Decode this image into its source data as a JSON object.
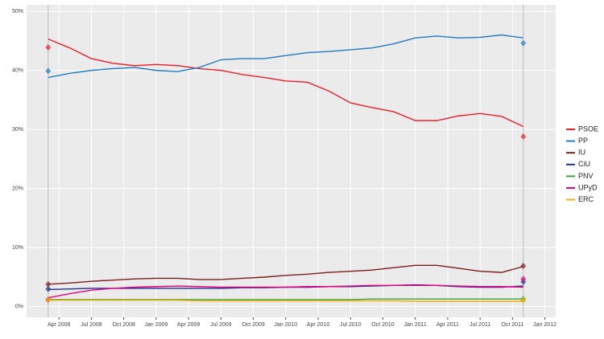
{
  "chart_data": {
    "type": "line",
    "x": [
      "2008-03",
      "2008-05",
      "2008-07",
      "2008-09",
      "2008-11",
      "2009-01",
      "2009-03",
      "2009-05",
      "2009-07",
      "2009-09",
      "2009-11",
      "2010-01",
      "2010-03",
      "2010-05",
      "2010-07",
      "2010-09",
      "2010-11",
      "2011-01",
      "2011-03",
      "2011-05",
      "2011-07",
      "2011-09",
      "2011-11"
    ],
    "election_x": [
      "2008-03",
      "2011-11"
    ],
    "series": [
      {
        "name": "PSOE",
        "color": "#e8202a",
        "values": [
          45.3,
          43.8,
          42,
          41.2,
          40.8,
          41,
          40.8,
          40.3,
          40,
          39.3,
          38.8,
          38.2,
          38,
          36.5,
          34.5,
          33.7,
          33,
          31.5,
          31.5,
          32.3,
          32.7,
          32.2,
          30.5
        ],
        "results": [
          43.9,
          28.8
        ]
      },
      {
        "name": "PP",
        "color": "#1f7bc1",
        "values": [
          38.8,
          39.5,
          40,
          40.3,
          40.5,
          40,
          39.8,
          40.5,
          41.8,
          42,
          42,
          42.5,
          43,
          43.2,
          43.5,
          43.8,
          44.5,
          45.5,
          45.8,
          45.5,
          45.6,
          46,
          45.5
        ],
        "results": [
          39.9,
          44.6
        ]
      },
      {
        "name": "IU",
        "color": "#7a1e1e",
        "values": [
          3.8,
          4,
          4.3,
          4.5,
          4.7,
          4.8,
          4.8,
          4.6,
          4.6,
          4.8,
          5,
          5.3,
          5.5,
          5.8,
          6,
          6.2,
          6.6,
          7,
          7,
          6.5,
          6,
          5.8,
          6.8
        ],
        "results": [
          3.8,
          6.9
        ]
      },
      {
        "name": "CiU",
        "color": "#1f2f8a",
        "values": [
          2.9,
          3,
          3.1,
          3.1,
          3.1,
          3.1,
          3.1,
          3.1,
          3.1,
          3.2,
          3.2,
          3.3,
          3.3,
          3.4,
          3.4,
          3.5,
          3.6,
          3.7,
          3.6,
          3.4,
          3.3,
          3.3,
          3.5
        ],
        "results": [
          3,
          4.2
        ]
      },
      {
        "name": "PNV",
        "color": "#3aa635",
        "values": [
          1.2,
          1.2,
          1.2,
          1.2,
          1.2,
          1.2,
          1.2,
          1.2,
          1.2,
          1.2,
          1.2,
          1.2,
          1.2,
          1.2,
          1.2,
          1.3,
          1.3,
          1.3,
          1.3,
          1.3,
          1.3,
          1.3,
          1.3
        ],
        "results": [
          1.2,
          1.3
        ]
      },
      {
        "name": "UPyD",
        "color": "#e5007d",
        "values": [
          1.5,
          2.2,
          2.8,
          3.1,
          3.3,
          3.4,
          3.5,
          3.4,
          3.3,
          3.3,
          3.3,
          3.3,
          3.4,
          3.4,
          3.5,
          3.6,
          3.6,
          3.6,
          3.6,
          3.5,
          3.4,
          3.4,
          3.3
        ],
        "results": [
          1.2,
          4.7
        ]
      },
      {
        "name": "ERC",
        "color": "#f2a900",
        "values": [
          1.1,
          1.1,
          1.1,
          1.1,
          1.1,
          1.1,
          1.1,
          1,
          1,
          1,
          1,
          1,
          1,
          1,
          1,
          1,
          1,
          0.9,
          0.9,
          0.9,
          0.9,
          0.9,
          0.9
        ],
        "results": [
          1.2,
          1.1
        ]
      }
    ],
    "xlim": [
      "2008-01",
      "2012-02"
    ],
    "xticks": [
      {
        "value": "2008-04",
        "label": "Apr 2008"
      },
      {
        "value": "2008-07",
        "label": "Jul 2008"
      },
      {
        "value": "2008-10",
        "label": "Oct 2008"
      },
      {
        "value": "2009-01",
        "label": "Jan 2009"
      },
      {
        "value": "2009-04",
        "label": "Apr 2009"
      },
      {
        "value": "2009-07",
        "label": "Jul 2009"
      },
      {
        "value": "2009-10",
        "label": "Oct 2009"
      },
      {
        "value": "2010-01",
        "label": "Jan 2010"
      },
      {
        "value": "2010-04",
        "label": "Apr 2010"
      },
      {
        "value": "2010-07",
        "label": "Jul 2010"
      },
      {
        "value": "2010-10",
        "label": "Oct 2010"
      },
      {
        "value": "2011-01",
        "label": "Jan 2011"
      },
      {
        "value": "2011-04",
        "label": "Apr 2011"
      },
      {
        "value": "2011-07",
        "label": "Jul 2011"
      },
      {
        "value": "2011-10",
        "label": "Oct 2011"
      },
      {
        "value": "2012-01",
        "label": "Jan 2012"
      }
    ],
    "ylim": [
      -1.8,
      51.1
    ],
    "yticks": [
      {
        "value": 0,
        "label": "0%"
      },
      {
        "value": 10,
        "label": "10%"
      },
      {
        "value": 20,
        "label": "20%"
      },
      {
        "value": 30,
        "label": "30%"
      },
      {
        "value": 40,
        "label": "40%"
      },
      {
        "value": 50,
        "label": "50%"
      }
    ],
    "grid": true,
    "legend": "right"
  }
}
